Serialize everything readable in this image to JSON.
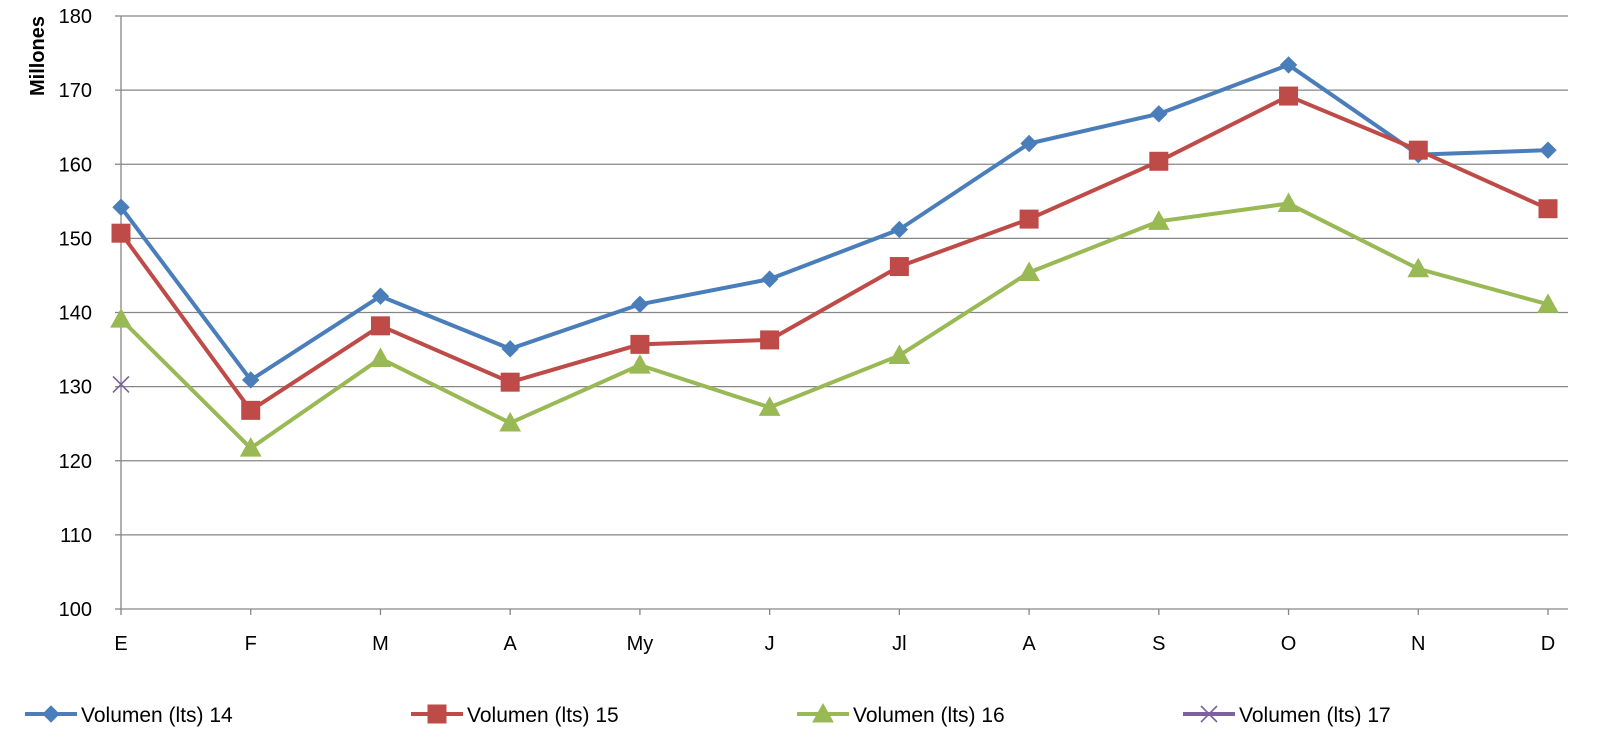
{
  "chart_data": {
    "type": "line",
    "title": "",
    "xlabel": "",
    "ylabel": "Millones",
    "ylim": [
      100,
      180
    ],
    "yticks": [
      100,
      110,
      120,
      130,
      140,
      150,
      160,
      170,
      180
    ],
    "ytick_labels": [
      "100",
      "110",
      "120",
      "130",
      "140",
      "150",
      "160",
      "170",
      "180"
    ],
    "grid": true,
    "legend_position": "bottom",
    "categories": [
      "E",
      "F",
      "M",
      "A",
      "My",
      "J",
      "Jl",
      "A",
      "S",
      "O",
      "N",
      "D"
    ],
    "series": [
      {
        "name": "Volumen (lts) 14",
        "color": "#4a7ebb",
        "marker": "diamond",
        "values": [
          154.2,
          130.9,
          142.2,
          135.1,
          141.1,
          144.5,
          151.2,
          162.8,
          166.8,
          173.4,
          161.3,
          161.9
        ]
      },
      {
        "name": "Volumen (lts) 15",
        "color": "#be4b48",
        "marker": "square",
        "values": [
          150.7,
          126.8,
          138.2,
          130.6,
          135.7,
          136.3,
          146.2,
          152.6,
          160.4,
          169.2,
          161.9,
          154.0
        ]
      },
      {
        "name": "Volumen (lts) 16",
        "color": "#98b954",
        "marker": "triangle",
        "values": [
          139.1,
          121.7,
          133.8,
          125.1,
          132.9,
          127.2,
          134.2,
          145.4,
          152.3,
          154.7,
          145.9,
          141.1
        ]
      },
      {
        "name": "Volumen (lts) 17",
        "color": "#7d60a0",
        "marker": "x",
        "values": [
          130.3,
          null,
          null,
          null,
          null,
          null,
          null,
          null,
          null,
          null,
          null,
          null
        ]
      }
    ]
  }
}
